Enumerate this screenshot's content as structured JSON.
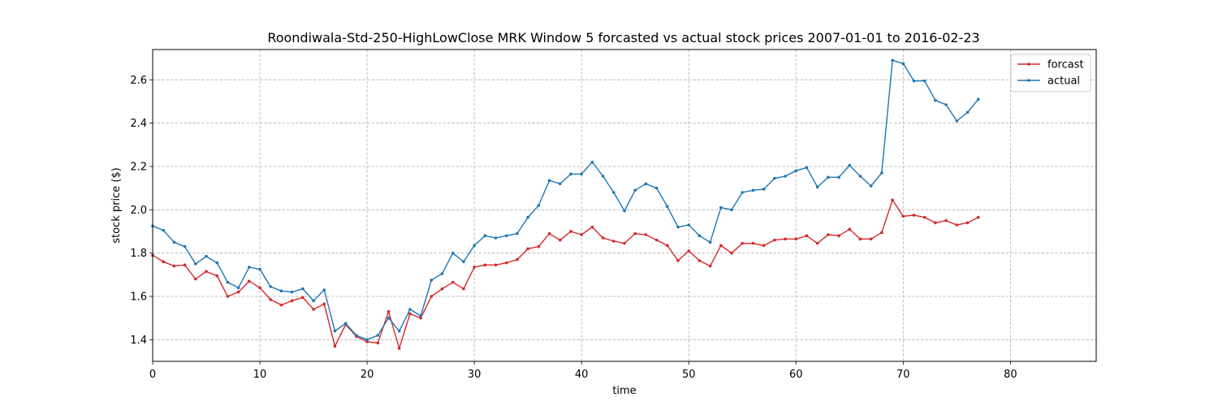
{
  "chart_data": {
    "type": "line",
    "title": "Roondiwala-Std-250-HighLowClose MRK Window 5 forcasted vs actual stock prices 2007-01-01 to 2016-02-23",
    "xlabel": "time",
    "ylabel": "stock price ($)",
    "xlim": [
      0,
      88
    ],
    "ylim": [
      1.3,
      2.74
    ],
    "x_ticks": [
      0,
      10,
      20,
      30,
      40,
      50,
      60,
      70,
      80
    ],
    "y_ticks": [
      1.4,
      1.6,
      1.8,
      2.0,
      2.2,
      2.4,
      2.6
    ],
    "grid": true,
    "legend_position": "top-right",
    "x": [
      0,
      1,
      2,
      3,
      4,
      5,
      6,
      7,
      8,
      9,
      10,
      11,
      12,
      13,
      14,
      15,
      16,
      17,
      18,
      19,
      20,
      21,
      22,
      23,
      24,
      25,
      26,
      27,
      28,
      29,
      30,
      31,
      32,
      33,
      34,
      35,
      36,
      37,
      38,
      39,
      40,
      41,
      42,
      43,
      44,
      45,
      46,
      47,
      48,
      49,
      50,
      51,
      52,
      53,
      54,
      55,
      56,
      57,
      58,
      59,
      60,
      61,
      62,
      63,
      64,
      65,
      66,
      67,
      68,
      69,
      70,
      71,
      72,
      73,
      74,
      75,
      76,
      77
    ],
    "series": [
      {
        "name": "forcast",
        "color": "#d62728",
        "values": [
          1.79,
          1.76,
          1.74,
          1.745,
          1.68,
          1.715,
          1.695,
          1.6,
          1.62,
          1.67,
          1.64,
          1.585,
          1.56,
          1.58,
          1.595,
          1.54,
          1.565,
          1.37,
          1.47,
          1.415,
          1.39,
          1.385,
          1.53,
          1.36,
          1.52,
          1.5,
          1.6,
          1.635,
          1.665,
          1.635,
          1.735,
          1.745,
          1.745,
          1.755,
          1.77,
          1.82,
          1.83,
          1.89,
          1.86,
          1.9,
          1.885,
          1.92,
          1.87,
          1.855,
          1.845,
          1.89,
          1.885,
          1.86,
          1.835,
          1.765,
          1.81,
          1.765,
          1.74,
          1.835,
          1.8,
          1.845,
          1.845,
          1.835,
          1.86,
          1.865,
          1.865,
          1.88,
          1.845,
          1.885,
          1.88,
          1.91,
          1.865,
          1.865,
          1.895,
          2.045,
          1.97,
          1.975,
          1.965,
          1.94,
          1.95,
          1.93,
          1.94,
          1.965
        ]
      },
      {
        "name": "actual",
        "color": "#1f77b4",
        "values": [
          1.925,
          1.905,
          1.85,
          1.83,
          1.75,
          1.785,
          1.755,
          1.665,
          1.64,
          1.735,
          1.725,
          1.645,
          1.625,
          1.62,
          1.635,
          1.58,
          1.63,
          1.44,
          1.475,
          1.42,
          1.4,
          1.42,
          1.5,
          1.44,
          1.54,
          1.51,
          1.675,
          1.705,
          1.8,
          1.76,
          1.835,
          1.88,
          1.87,
          1.88,
          1.89,
          1.965,
          2.02,
          2.135,
          2.12,
          2.165,
          2.165,
          2.22,
          2.155,
          2.08,
          1.995,
          2.09,
          2.12,
          2.1,
          2.015,
          1.92,
          1.93,
          1.88,
          1.85,
          2.01,
          2.0,
          2.08,
          2.09,
          2.095,
          2.145,
          2.155,
          2.18,
          2.195,
          2.105,
          2.15,
          2.15,
          2.205,
          2.155,
          2.11,
          2.17,
          2.69,
          2.675,
          2.595,
          2.595,
          2.505,
          2.485,
          2.41,
          2.45,
          2.51
        ]
      }
    ]
  }
}
